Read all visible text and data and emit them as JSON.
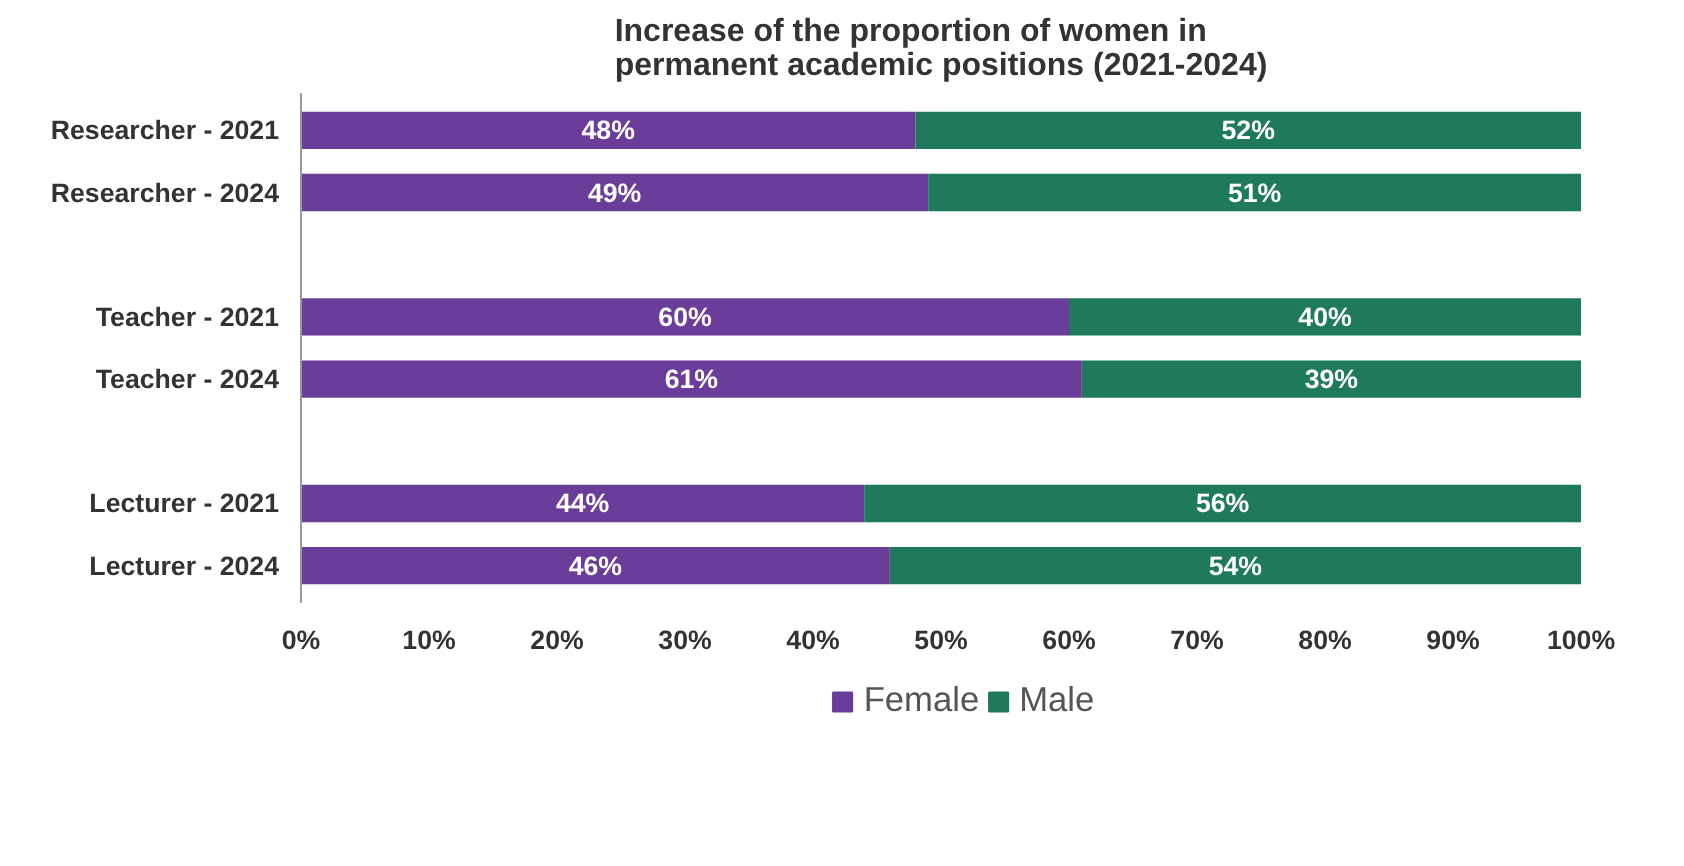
{
  "chart_data": {
    "type": "bar",
    "orientation": "horizontal",
    "stacked": true,
    "title": "Increase of the proportion of women in\npermanent academic positions (2021-2024)",
    "categories": [
      "Researcher - 2021",
      "Researcher - 2024",
      null,
      "Teacher - 2021",
      "Teacher - 2024",
      null,
      "Lecturer - 2021",
      "Lecturer - 2024"
    ],
    "series": [
      {
        "name": "Female",
        "color": "#6a3d9a",
        "values": [
          48,
          49,
          null,
          60,
          61,
          null,
          44,
          46
        ],
        "value_labels": [
          "48%",
          "49%",
          null,
          "60%",
          "61%",
          null,
          "44%",
          "46%"
        ]
      },
      {
        "name": "Male",
        "color": "#1f7a5c",
        "values": [
          52,
          51,
          null,
          40,
          39,
          null,
          56,
          54
        ],
        "value_labels": [
          "52%",
          "51%",
          null,
          "40%",
          "39%",
          null,
          "56%",
          "54%"
        ]
      }
    ],
    "xlim": [
      0,
      100
    ],
    "xticks": [
      {
        "value": 0,
        "label": "0%"
      },
      {
        "value": 10,
        "label": "10%"
      },
      {
        "value": 20,
        "label": "20%"
      },
      {
        "value": 30,
        "label": "30%"
      },
      {
        "value": 40,
        "label": "40%"
      },
      {
        "value": 50,
        "label": "50%"
      },
      {
        "value": 60,
        "label": "60%"
      },
      {
        "value": 70,
        "label": "70%"
      },
      {
        "value": 80,
        "label": "80%"
      },
      {
        "value": 90,
        "label": "90%"
      },
      {
        "value": 100,
        "label": "100%"
      }
    ],
    "grid": false,
    "legend": "bottom"
  }
}
